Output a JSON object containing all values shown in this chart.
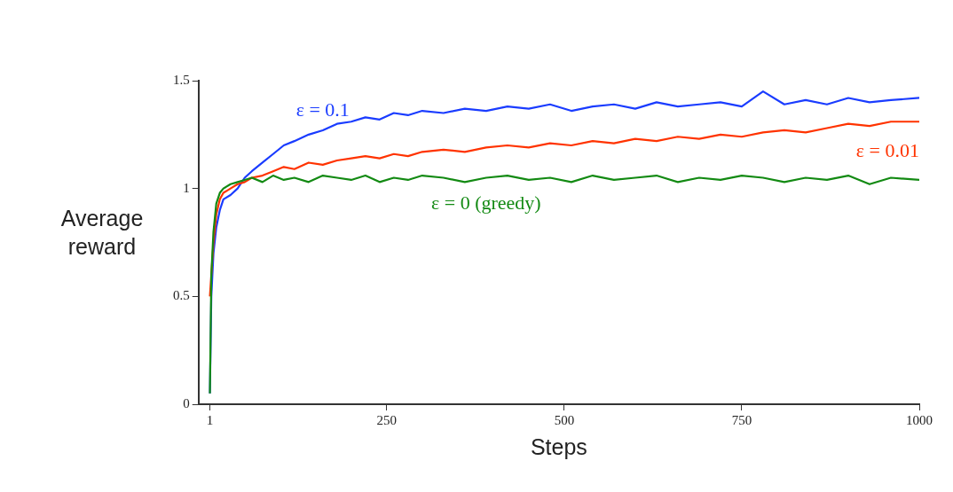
{
  "chart_data": {
    "type": "line",
    "xlabel": "Steps",
    "ylabel": "Average reward",
    "x": [
      1,
      3,
      6,
      10,
      15,
      20,
      30,
      40,
      50,
      60,
      75,
      90,
      105,
      120,
      140,
      160,
      180,
      200,
      220,
      240,
      260,
      280,
      300,
      330,
      360,
      390,
      420,
      450,
      480,
      510,
      540,
      570,
      600,
      630,
      660,
      690,
      720,
      750,
      780,
      810,
      840,
      870,
      900,
      930,
      960,
      1000
    ],
    "series": [
      {
        "name": "ε = 0.1",
        "color": "#1a3cff",
        "values": [
          0.05,
          0.5,
          0.7,
          0.82,
          0.9,
          0.95,
          0.97,
          1.0,
          1.05,
          1.08,
          1.12,
          1.16,
          1.2,
          1.22,
          1.25,
          1.27,
          1.3,
          1.31,
          1.33,
          1.32,
          1.35,
          1.34,
          1.36,
          1.35,
          1.37,
          1.36,
          1.38,
          1.37,
          1.39,
          1.36,
          1.38,
          1.39,
          1.37,
          1.4,
          1.38,
          1.39,
          1.4,
          1.38,
          1.45,
          1.39,
          1.41,
          1.39,
          1.42,
          1.4,
          1.41,
          1.42
        ]
      },
      {
        "name": "ε = 0.01",
        "color": "#ff3300",
        "values": [
          0.5,
          0.6,
          0.75,
          0.88,
          0.95,
          0.98,
          1.0,
          1.02,
          1.03,
          1.05,
          1.06,
          1.08,
          1.1,
          1.09,
          1.12,
          1.11,
          1.13,
          1.14,
          1.15,
          1.14,
          1.16,
          1.15,
          1.17,
          1.18,
          1.17,
          1.19,
          1.2,
          1.19,
          1.21,
          1.2,
          1.22,
          1.21,
          1.23,
          1.22,
          1.24,
          1.23,
          1.25,
          1.24,
          1.26,
          1.27,
          1.26,
          1.28,
          1.3,
          1.29,
          1.31,
          1.31
        ]
      },
      {
        "name": "ε = 0 (greedy)",
        "color": "#138a13",
        "values": [
          0.05,
          0.6,
          0.8,
          0.93,
          0.98,
          1.0,
          1.02,
          1.03,
          1.04,
          1.05,
          1.03,
          1.06,
          1.04,
          1.05,
          1.03,
          1.06,
          1.05,
          1.04,
          1.06,
          1.03,
          1.05,
          1.04,
          1.06,
          1.05,
          1.03,
          1.05,
          1.06,
          1.04,
          1.05,
          1.03,
          1.06,
          1.04,
          1.05,
          1.06,
          1.03,
          1.05,
          1.04,
          1.06,
          1.05,
          1.03,
          1.05,
          1.04,
          1.06,
          1.02,
          1.05,
          1.04
        ]
      }
    ],
    "xlim": [
      -15,
      1000
    ],
    "xticks": [
      1,
      250,
      500,
      750,
      1000
    ],
    "ylim": [
      0,
      1.5
    ],
    "yticks": [
      0,
      0.5,
      1,
      1.5
    ],
    "grid": false,
    "legend": false,
    "marker": "none",
    "line_style": "solid"
  }
}
